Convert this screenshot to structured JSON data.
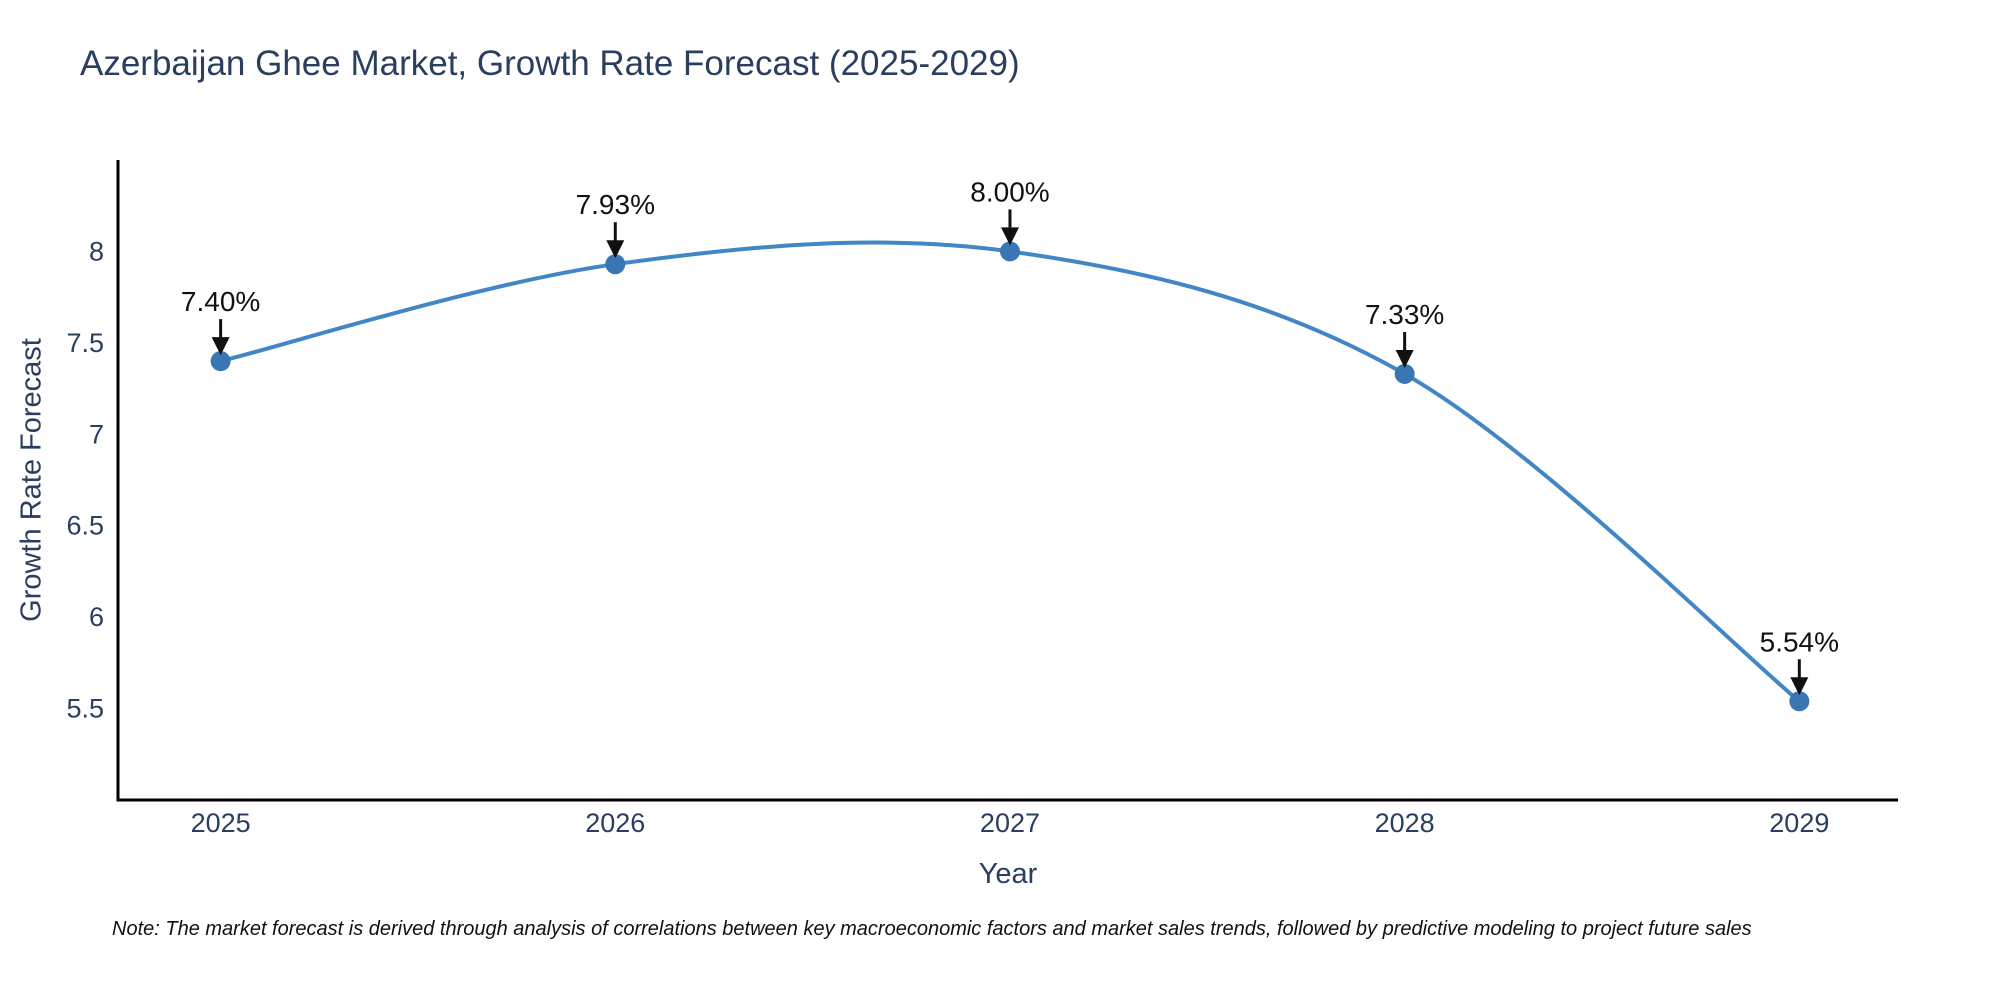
{
  "title": "Azerbaijan Ghee Market, Growth Rate Forecast (2025-2029)",
  "note": "Note: The market forecast is derived through analysis of correlations between key macroeconomic factors and market sales trends, followed by predictive modeling to project future sales",
  "chart_data": {
    "type": "line",
    "title": "Azerbaijan Ghee Market, Growth Rate Forecast (2025-2029)",
    "xlabel": "Year",
    "ylabel": "Growth Rate Forecast",
    "x": [
      2025,
      2026,
      2027,
      2028,
      2029
    ],
    "y": [
      7.4,
      7.93,
      8.0,
      7.33,
      5.54
    ],
    "point_labels": [
      "7.40%",
      "7.93%",
      "8.00%",
      "7.33%",
      "5.54%"
    ],
    "xticks": [
      "2025",
      "2026",
      "2027",
      "2028",
      "2029"
    ],
    "yticks": [
      5.5,
      6,
      6.5,
      7,
      7.5,
      8
    ],
    "ytick_labels": [
      "5.5",
      "6",
      "6.5",
      "7",
      "7.5",
      "8"
    ],
    "xlim": [
      2024.74,
      2029.25
    ],
    "ylim": [
      5.0,
      8.5
    ],
    "grid": false,
    "legend": false,
    "line_shape": "spline",
    "annotation_arrows": true,
    "colors": {
      "line": "#4286c5",
      "marker": "#3a76b4",
      "axis": "#000000",
      "tick_text": "#2a3f5f",
      "annotation": "#111111",
      "background": "#ffffff"
    }
  }
}
